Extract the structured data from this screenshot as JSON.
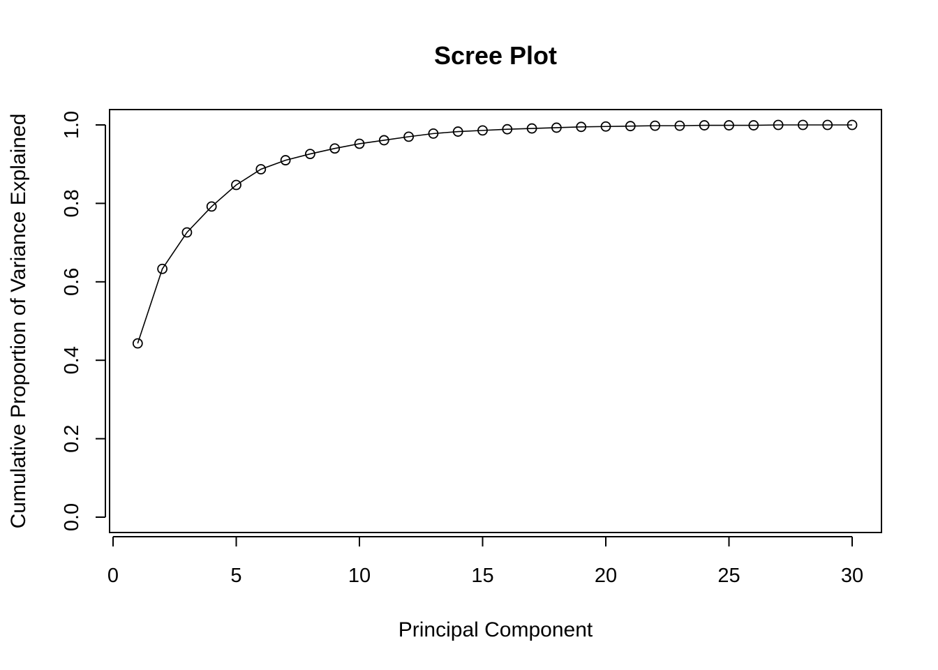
{
  "chart_data": {
    "type": "line",
    "title": "Scree Plot",
    "xlabel": "Principal Component",
    "ylabel": "Cumulative Proportion of Variance Explained",
    "xlim": [
      0,
      30
    ],
    "ylim": [
      0,
      1
    ],
    "x_ticks": [
      0,
      5,
      10,
      15,
      20,
      25,
      30
    ],
    "x_tick_labels": [
      "0",
      "5",
      "10",
      "15",
      "20",
      "25",
      "30"
    ],
    "y_ticks": [
      0,
      0.2,
      0.4,
      0.6,
      0.8,
      1.0
    ],
    "y_tick_labels": [
      "0.0",
      "0.2",
      "0.4",
      "0.6",
      "0.8",
      "1.0"
    ],
    "grid": false,
    "marker": "open-circle",
    "x": [
      1,
      2,
      3,
      4,
      5,
      6,
      7,
      8,
      9,
      10,
      11,
      12,
      13,
      14,
      15,
      16,
      17,
      18,
      19,
      20,
      21,
      22,
      23,
      24,
      25,
      26,
      27,
      28,
      29,
      30
    ],
    "values": [
      0.443,
      0.633,
      0.726,
      0.792,
      0.847,
      0.887,
      0.91,
      0.926,
      0.94,
      0.952,
      0.961,
      0.97,
      0.978,
      0.983,
      0.986,
      0.989,
      0.991,
      0.993,
      0.995,
      0.996,
      0.997,
      0.998,
      0.998,
      0.999,
      0.999,
      0.999,
      1.0,
      1.0,
      1.0,
      1.0
    ]
  }
}
